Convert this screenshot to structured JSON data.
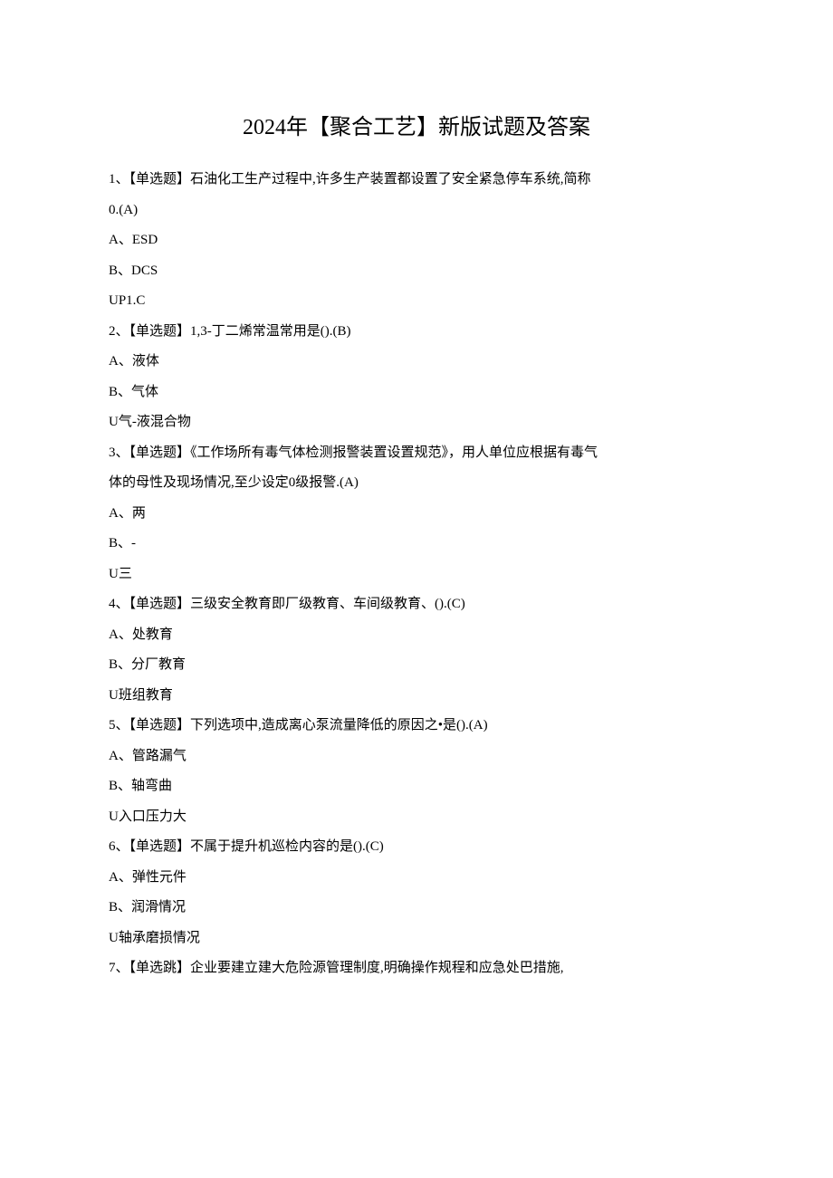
{
  "title": "2024年【聚合工艺】新版试题及答案",
  "items": [
    {
      "q": "1、【单选题】石油化工生产过程中,许多生产装置都设置了安全紧急停车系统,简称",
      "qcont": "0.(A)",
      "opts": [
        "A、ESD",
        "B、DCS",
        "UP1.C"
      ]
    },
    {
      "q": "2、【单选题】1,3-丁二烯常温常用是().(B)",
      "opts": [
        "A、液体",
        "B、气体",
        "U气-液混合物"
      ]
    },
    {
      "q": "3、【单选题】《工作场所有毒气体检测报警装置设置规范》，用人单位应根据有毒气",
      "qcont": "体的母性及现场情况,至少设定0级报警.(A)",
      "opts": [
        "A、两",
        "B、-",
        "U三"
      ]
    },
    {
      "q": "4、【单选题】三级安全教育即厂级教育、车间级教育、().(C)",
      "opts": [
        "A、处教育",
        "B、分厂教育",
        "U班组教育"
      ]
    },
    {
      "q": "5、【单选题】下列选项中,造成离心泵流量降低的原因之•是().(A)",
      "opts": [
        "A、管路漏气",
        "B、轴弯曲",
        "U入口压力大"
      ]
    },
    {
      "q": "6、【单选题】不属于提升机巡检内容的是().(C)",
      "opts": [
        "A、弹性元件",
        "B、润滑情况",
        "U轴承磨损情况"
      ]
    },
    {
      "q": "7、【单选跳】企业要建立建大危险源管理制度,明确操作规程和应急处巴措施,",
      "opts": []
    }
  ]
}
